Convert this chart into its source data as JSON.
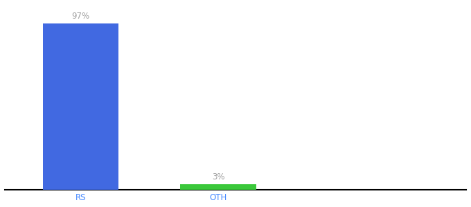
{
  "categories": [
    "RS",
    "OTH"
  ],
  "values": [
    97,
    3
  ],
  "bar_colors": [
    "#4169e1",
    "#3ac83a"
  ],
  "label_colors": [
    "#a0a0a0",
    "#a0a0a0"
  ],
  "labels": [
    "97%",
    "3%"
  ],
  "ylim": [
    0,
    108
  ],
  "background_color": "#ffffff",
  "bar_width": 0.55,
  "xlabel_fontsize": 8.5,
  "label_fontsize": 8.5,
  "spine_color": "#000000",
  "tick_color": "#4488ff"
}
